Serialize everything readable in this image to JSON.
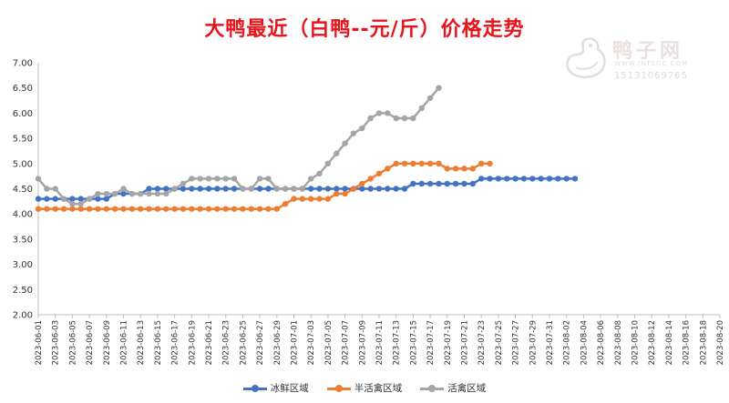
{
  "chart_data": {
    "type": "line",
    "title": "大鸭最近（白鸭--元/斤）价格走势",
    "xlabel": "",
    "ylabel": "",
    "ylim": [
      2.0,
      7.0
    ],
    "yticks": [
      "7.00",
      "6.50",
      "6.00",
      "5.50",
      "5.00",
      "4.50",
      "4.00",
      "3.50",
      "3.00",
      "2.50",
      "2.00"
    ],
    "x_start": "2023-06-01",
    "x_end": "2023-08-20",
    "x_tick_labels": [
      "2023-06-01",
      "2023-06-03",
      "2023-06-05",
      "2023-06-07",
      "2023-06-09",
      "2023-06-11",
      "2023-06-13",
      "2023-06-15",
      "2023-06-17",
      "2023-06-19",
      "2023-06-21",
      "2023-06-23",
      "2023-06-25",
      "2023-06-27",
      "2023-06-29",
      "2023-07-01",
      "2023-07-03",
      "2023-07-05",
      "2023-07-07",
      "2023-07-09",
      "2023-07-11",
      "2023-07-13",
      "2023-07-15",
      "2023-07-17",
      "2023-07-19",
      "2023-07-21",
      "2023-07-23",
      "2023-07-25",
      "2023-07-27",
      "2023-07-29",
      "2023-07-31",
      "2023-08-02",
      "2023-08-04",
      "2023-08-06",
      "2023-08-08",
      "2023-08-10",
      "2023-08-12",
      "2023-08-14",
      "2023-08-16",
      "2023-08-18",
      "2023-08-20"
    ],
    "grid": false,
    "legend_position": "bottom",
    "series": [
      {
        "name": "冰鲜区域",
        "color": "#4472c4",
        "values": [
          4.3,
          4.3,
          4.3,
          4.3,
          4.3,
          4.3,
          4.3,
          4.3,
          4.3,
          4.4,
          4.4,
          4.4,
          4.4,
          4.5,
          4.5,
          4.5,
          4.5,
          4.5,
          4.5,
          4.5,
          4.5,
          4.5,
          4.5,
          4.5,
          4.5,
          4.5,
          4.5,
          4.5,
          4.5,
          4.5,
          4.5,
          4.5,
          4.5,
          4.5,
          4.5,
          4.5,
          4.5,
          4.5,
          4.5,
          4.5,
          4.5,
          4.5,
          4.5,
          4.5,
          4.6,
          4.6,
          4.6,
          4.6,
          4.6,
          4.6,
          4.6,
          4.6,
          4.7,
          4.7,
          4.7,
          4.7,
          4.7,
          4.7,
          4.7,
          4.7,
          4.7,
          4.7,
          4.7,
          4.7
        ]
      },
      {
        "name": "半活禽区域",
        "color": "#ed7d31",
        "values": [
          4.1,
          4.1,
          4.1,
          4.1,
          4.1,
          4.1,
          4.1,
          4.1,
          4.1,
          4.1,
          4.1,
          4.1,
          4.1,
          4.1,
          4.1,
          4.1,
          4.1,
          4.1,
          4.1,
          4.1,
          4.1,
          4.1,
          4.1,
          4.1,
          4.1,
          4.1,
          4.1,
          4.1,
          4.1,
          4.2,
          4.3,
          4.3,
          4.3,
          4.3,
          4.3,
          4.4,
          4.4,
          4.5,
          4.6,
          4.7,
          4.8,
          4.9,
          5.0,
          5.0,
          5.0,
          5.0,
          5.0,
          5.0,
          4.9,
          4.9,
          4.9,
          4.9,
          5.0,
          5.0
        ]
      },
      {
        "name": "活禽区域",
        "color": "#a5a5a5",
        "values": [
          4.7,
          4.5,
          4.5,
          4.3,
          4.2,
          4.2,
          4.3,
          4.4,
          4.4,
          4.4,
          4.5,
          4.4,
          4.4,
          4.4,
          4.4,
          4.4,
          4.5,
          4.6,
          4.7,
          4.7,
          4.7,
          4.7,
          4.7,
          4.7,
          4.5,
          4.5,
          4.7,
          4.7,
          4.5,
          4.5,
          4.5,
          4.5,
          4.7,
          4.8,
          5.0,
          5.2,
          5.4,
          5.6,
          5.7,
          5.9,
          6.0,
          6.0,
          5.9,
          5.9,
          5.9,
          6.1,
          6.3,
          6.5
        ]
      }
    ]
  },
  "watermark": {
    "brand": "鸭子网",
    "url": "WWW.INTEDC.COM",
    "phone": "15131069765"
  }
}
